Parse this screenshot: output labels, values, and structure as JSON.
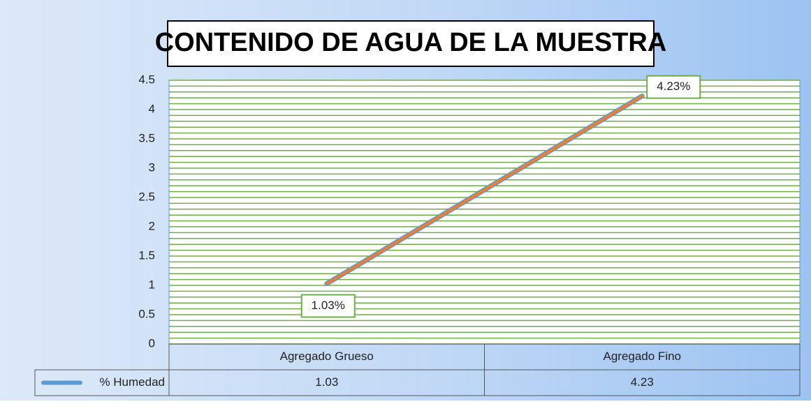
{
  "chart_data": {
    "type": "line",
    "title": "CONTENIDO DE AGUA DE LA MUESTRA",
    "categories": [
      "Agregado Grueso",
      "Agregado Fino"
    ],
    "series": [
      {
        "name": "% Humedad",
        "color": "#5b9bd5",
        "values": [
          1.03,
          4.23
        ],
        "value_labels": [
          "1.03%",
          "4.23%"
        ]
      }
    ],
    "ylim": [
      0,
      4.5
    ],
    "yticks": [
      0,
      0.5,
      1,
      1.5,
      2,
      2.5,
      3,
      3.5,
      4,
      4.5
    ],
    "grid": true,
    "data_table": true
  }
}
